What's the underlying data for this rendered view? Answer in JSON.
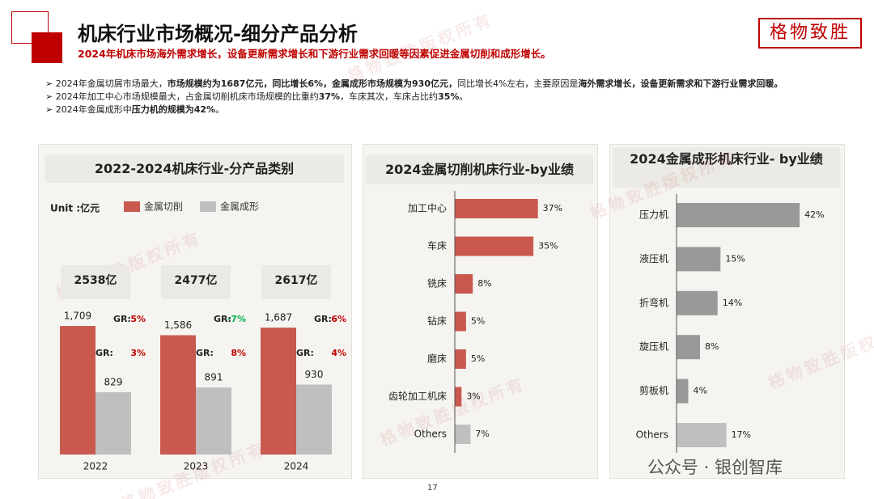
{
  "header": {
    "title": "机床行业市场概况-细分产品分析",
    "subtitle": "2024年机床市场海外需求增长，设备更新需求增长和下游行业需求回暖等因素促进金属切削和成形增长。",
    "logo": "格物致胜"
  },
  "bullets": [
    [
      {
        "text": "2024年金属切屑市场最大，",
        "bold": false
      },
      {
        "text": "市场规模约为1687亿元，同比增长6%，金属成形市场规模为930亿元，",
        "bold": true
      },
      {
        "text": "同比增长4%左右，主要原因是",
        "bold": false
      },
      {
        "text": "海外需求增长，设备更新需求和下游行业需求回暖。",
        "bold": true
      }
    ],
    [
      {
        "text": "2024年加工中心市场规模最大，占金属切削机床市场规模的比重约",
        "bold": false
      },
      {
        "text": "37%",
        "bold": true
      },
      {
        "text": "，车床其次，车床占比约",
        "bold": false
      },
      {
        "text": "35%",
        "bold": true
      },
      {
        "text": "。",
        "bold": false
      }
    ],
    [
      {
        "text": "2024年金属成形中",
        "bold": false
      },
      {
        "text": "压力机的规模为42%",
        "bold": true
      },
      {
        "text": "。",
        "bold": false
      }
    ]
  ],
  "chart_data": [
    {
      "type": "bar",
      "title": "2022-2024机床行业-分产品类别",
      "unit": "Unit :亿元",
      "categories": [
        "2022",
        "2023",
        "2024"
      ],
      "ylim": [
        0,
        2000
      ],
      "series": [
        {
          "name": "金属切削",
          "color": "#c9584e",
          "values": [
            1709,
            1586,
            1687
          ],
          "value_labels": [
            "1,709",
            "1,586",
            "1,687"
          ],
          "growth": [
            5,
            -7,
            6
          ],
          "growth_labels": [
            "5%",
            "-7%",
            "6%"
          ]
        },
        {
          "name": "金属成形",
          "color": "#bfbfbf",
          "values": [
            829,
            891,
            930
          ],
          "growth": [
            3,
            8,
            4
          ],
          "growth_labels": [
            "3%",
            "8%",
            "4%"
          ]
        }
      ],
      "growth_prefix": "GR:",
      "growth_colors": {
        "positive": "#c00000",
        "negative": "#00b050"
      },
      "totals": [
        2538,
        2477,
        2617
      ],
      "total_labels": [
        "2538亿",
        "2477亿",
        "2617亿"
      ]
    },
    {
      "type": "barh",
      "title": "2024金属切削机床行业-by业绩",
      "categories": [
        "加工中心",
        "车床",
        "铣床",
        "钻床",
        "磨床",
        "齿轮加工机床",
        "Others"
      ],
      "values": [
        37,
        35,
        8,
        5,
        5,
        3,
        7
      ],
      "value_labels": [
        "37%",
        "35%",
        "8%",
        "5%",
        "5%",
        "3%",
        "7%"
      ],
      "colors": [
        "#c9584e",
        "#c9584e",
        "#c9584e",
        "#c9584e",
        "#c9584e",
        "#c9584e",
        "#bfbfbf"
      ],
      "xlim": [
        0,
        40
      ]
    },
    {
      "type": "barh",
      "title": "2024金属成形机床行业- by业绩",
      "categories": [
        "压力机",
        "液压机",
        "折弯机",
        "旋压机",
        "剪板机",
        "Others"
      ],
      "values": [
        42,
        15,
        14,
        8,
        4,
        17
      ],
      "value_labels": [
        "42%",
        "15%",
        "14%",
        "8%",
        "4%",
        "17%"
      ],
      "colors": [
        "#999999",
        "#999999",
        "#999999",
        "#999999",
        "#999999",
        "#bfbfbf"
      ],
      "xlim": [
        0,
        45
      ]
    }
  ],
  "watermark": "格物致胜版权所有",
  "source_mark": "公众号 · 银创智库",
  "page_number": "17"
}
